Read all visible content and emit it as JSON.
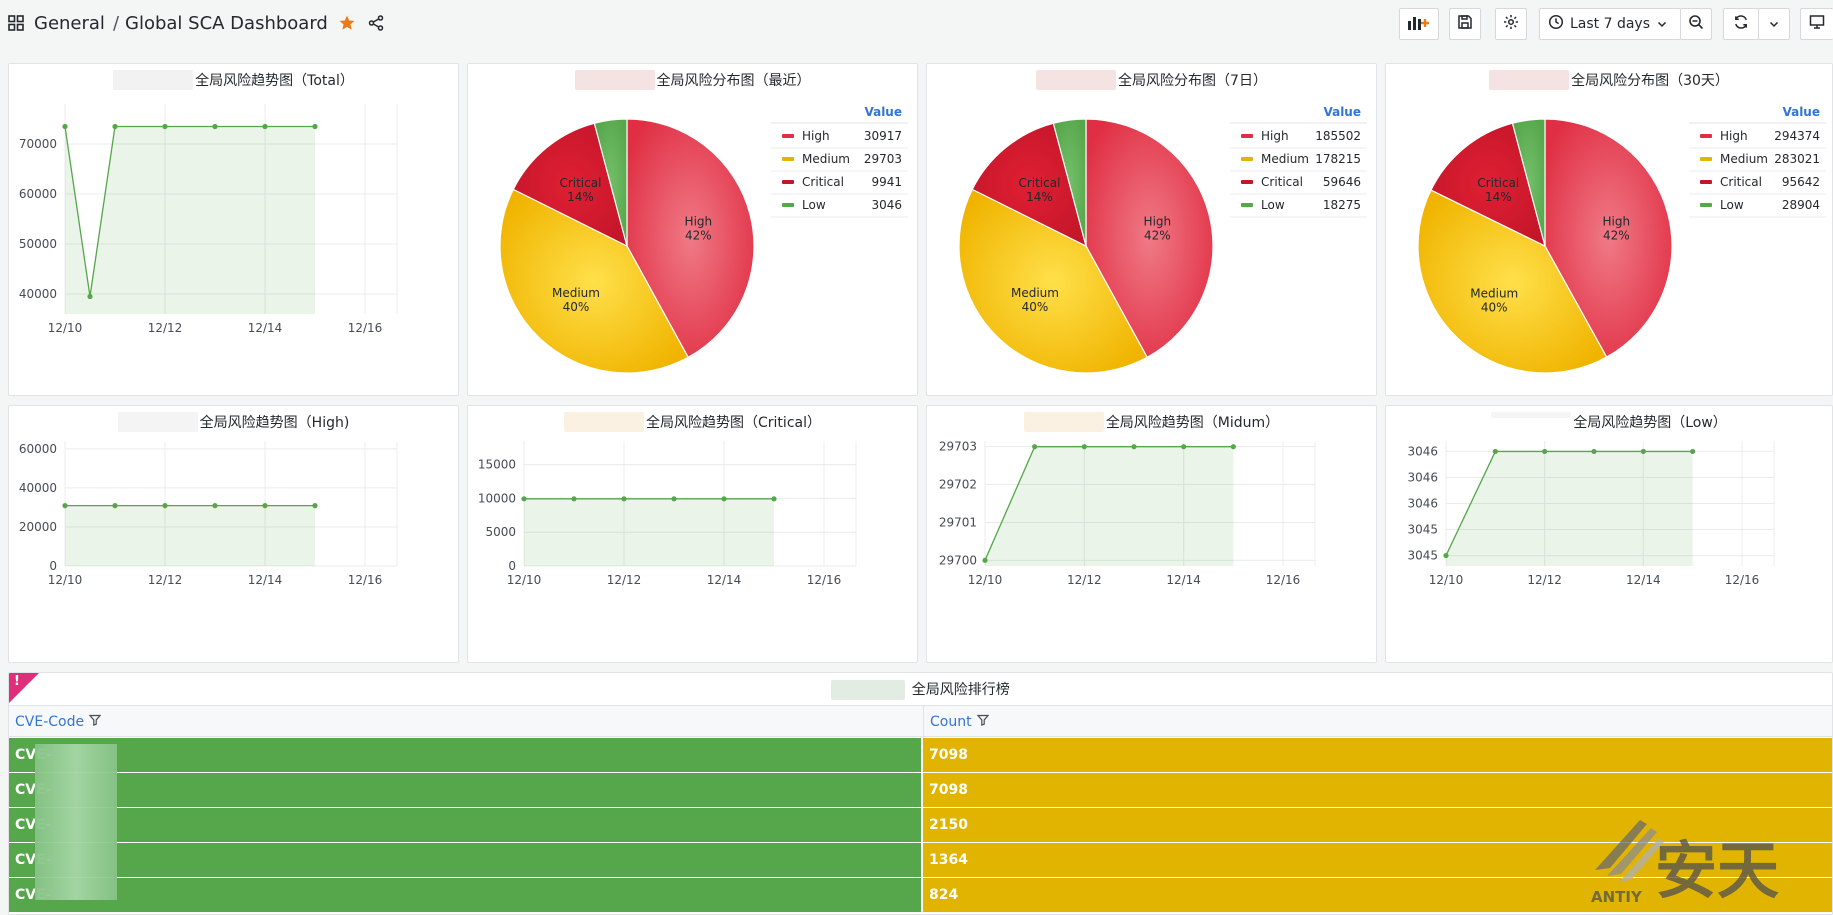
{
  "breadcrumb": {
    "home": "General",
    "separator": "/",
    "dashboard": "Global SCA Dashboard"
  },
  "toolbar": {
    "time_range": "Last 7 days"
  },
  "icons": {
    "apps": "apps-icon",
    "star": "star-icon",
    "share": "share-icon",
    "add_panel": "add-panel-icon",
    "save": "save-icon",
    "settings": "gear-icon",
    "clock": "clock-icon",
    "zoom_out": "zoom-out-icon",
    "refresh": "refresh-icon",
    "tv": "tv-icon",
    "filter": "filter-icon"
  },
  "colors": {
    "high": "#e02f44",
    "medium": "#e0b400",
    "critical": "#c4162a",
    "low": "#56a64b",
    "line": "#56a64b",
    "link": "#3274d9",
    "star": "#eb7b18"
  },
  "panels": {
    "trend_total": {
      "title": "全局风险趋势图（Total）"
    },
    "pie_recent": {
      "title": "全局风险分布图（最近）"
    },
    "pie_7d": {
      "title": "全局风险分布图（7日）"
    },
    "pie_30d": {
      "title": "全局风险分布图（30天）"
    },
    "trend_high": {
      "title": "全局风险趋势图（High)"
    },
    "trend_critical": {
      "title": "全局风险趋势图（Critical）"
    },
    "trend_medium": {
      "title": "全局风险趋势图（Midum）"
    },
    "trend_low": {
      "title": "全局风险趋势图（Low）"
    }
  },
  "chart_data": [
    {
      "id": "trend_total",
      "type": "area",
      "x": [
        "2023-12-10",
        "2023-12-10 12:00",
        "2023-12-11",
        "2023-12-12",
        "2023-12-13",
        "2023-12-14",
        "2023-12-15"
      ],
      "x_ticks": [
        "12/10",
        "12/12",
        "12/14",
        "12/16"
      ],
      "series": [
        {
          "values": [
            73500,
            39500,
            73500,
            73500,
            73500,
            73500,
            73500
          ]
        }
      ],
      "y_ticks": [
        "40000",
        "50000",
        "60000",
        "70000"
      ],
      "ylim": [
        36000,
        78000
      ],
      "grid": true
    },
    {
      "id": "pie_recent",
      "type": "pie",
      "legend_header": "Value",
      "slices": [
        {
          "name": "High",
          "value": 30917,
          "label": "High",
          "pct": "42%"
        },
        {
          "name": "Medium",
          "value": 29703,
          "label": "Medium",
          "pct": "40%"
        },
        {
          "name": "Critical",
          "value": 9941,
          "label": "Critical",
          "pct": "14%"
        },
        {
          "name": "Low",
          "value": 3046,
          "label": "",
          "pct": ""
        }
      ],
      "legend_values": [
        "30917",
        "29703",
        "9941",
        "3046"
      ]
    },
    {
      "id": "pie_7d",
      "type": "pie",
      "legend_header": "Value",
      "slices": [
        {
          "name": "High",
          "value": 185502,
          "label": "High",
          "pct": "42%"
        },
        {
          "name": "Medium",
          "value": 178215,
          "label": "Medium",
          "pct": "40%"
        },
        {
          "name": "Critical",
          "value": 59646,
          "label": "Critical",
          "pct": "14%"
        },
        {
          "name": "Low",
          "value": 18275,
          "label": "",
          "pct": ""
        }
      ],
      "legend_values": [
        "185502",
        "178215",
        "59646",
        "18275"
      ]
    },
    {
      "id": "pie_30d",
      "type": "pie",
      "legend_header": "Value",
      "slices": [
        {
          "name": "High",
          "value": 294374,
          "label": "High",
          "pct": "42%"
        },
        {
          "name": "Medium",
          "value": 283021,
          "label": "Medium",
          "pct": "40%"
        },
        {
          "name": "Critical",
          "value": 95642,
          "label": "Critical",
          "pct": "14%"
        },
        {
          "name": "Low",
          "value": 28904,
          "label": "",
          "pct": ""
        }
      ],
      "legend_values": [
        "294374",
        "283021",
        "95642",
        "28904"
      ]
    },
    {
      "id": "trend_high",
      "type": "area",
      "x": [
        "2023-12-10",
        "2023-12-11",
        "2023-12-12",
        "2023-12-13",
        "2023-12-14",
        "2023-12-15"
      ],
      "x_ticks": [
        "12/10",
        "12/12",
        "12/14",
        "12/16"
      ],
      "series": [
        {
          "values": [
            30917,
            30917,
            30917,
            30917,
            30917,
            30917
          ]
        }
      ],
      "y_ticks": [
        "0",
        "20000",
        "40000",
        "60000"
      ],
      "ylim": [
        0,
        64000
      ],
      "grid": true
    },
    {
      "id": "trend_critical",
      "type": "area",
      "x": [
        "2023-12-10",
        "2023-12-11",
        "2023-12-12",
        "2023-12-13",
        "2023-12-14",
        "2023-12-15"
      ],
      "x_ticks": [
        "12/10",
        "12/12",
        "12/14",
        "12/16"
      ],
      "series": [
        {
          "values": [
            9941,
            9941,
            9941,
            9941,
            9941,
            9941
          ]
        }
      ],
      "y_ticks": [
        "0",
        "5000",
        "10000",
        "15000"
      ],
      "ylim": [
        0,
        18500
      ],
      "grid": true
    },
    {
      "id": "trend_medium",
      "type": "area",
      "x": [
        "2023-12-10",
        "2023-12-11",
        "2023-12-12",
        "2023-12-13",
        "2023-12-14",
        "2023-12-15"
      ],
      "x_ticks": [
        "12/10",
        "12/12",
        "12/14",
        "12/16"
      ],
      "series": [
        {
          "values": [
            29700,
            29703,
            29703,
            29703,
            29703,
            29703
          ]
        }
      ],
      "y_ticks": [
        "29700",
        "29701",
        "29702",
        "29703"
      ],
      "ylim": [
        29699.85,
        29703.15
      ],
      "grid": true
    },
    {
      "id": "trend_low",
      "type": "area",
      "x": [
        "2023-12-10",
        "2023-12-11",
        "2023-12-12",
        "2023-12-13",
        "2023-12-14",
        "2023-12-15"
      ],
      "x_ticks": [
        "12/10",
        "12/12",
        "12/14",
        "12/16"
      ],
      "series": [
        {
          "values": [
            3045,
            3046,
            3046,
            3046,
            3046,
            3046
          ]
        }
      ],
      "y_ticks": [
        "3045",
        "3045",
        "3046",
        "3046",
        "3046"
      ],
      "ylim": [
        3044.9,
        3046.1
      ],
      "grid": true
    }
  ],
  "table": {
    "title": "全局风险排行榜",
    "columns": [
      "CVE-Code",
      "Count"
    ],
    "rows": [
      {
        "code": "CVE-",
        "count": "7098"
      },
      {
        "code": "CVE-",
        "count": "7098"
      },
      {
        "code": "CVE-",
        "count": "2150"
      },
      {
        "code": "CVE-",
        "count": "1364"
      },
      {
        "code": "CVE-",
        "count": "824"
      }
    ]
  },
  "watermark": {
    "brand": "ANTIY",
    "text": "安天"
  }
}
